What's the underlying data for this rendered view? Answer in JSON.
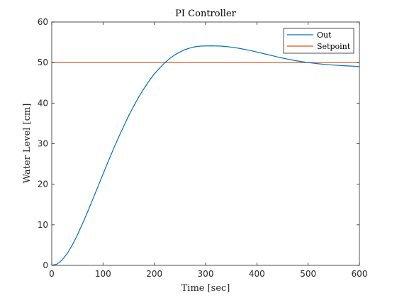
{
  "chart_data": {
    "type": "line",
    "title": "PI Controller",
    "xlabel": "Time [sec]",
    "ylabel": "Water Level [cm]",
    "xlim": [
      0,
      600
    ],
    "ylim": [
      0,
      60
    ],
    "xticks": [
      0,
      100,
      200,
      300,
      400,
      500,
      600
    ],
    "yticks": [
      0,
      10,
      20,
      30,
      40,
      50,
      60
    ],
    "xtick_labels": [
      "0",
      "100",
      "200",
      "300",
      "400",
      "500",
      "600"
    ],
    "ytick_labels": [
      "0",
      "10",
      "20",
      "30",
      "40",
      "50",
      "60"
    ],
    "grid": false,
    "legend_position": "top-right",
    "series": [
      {
        "name": "Out",
        "color": "#0072BD",
        "x": [
          0,
          10,
          20,
          30,
          40,
          50,
          60,
          70,
          80,
          90,
          100,
          110,
          120,
          130,
          140,
          150,
          160,
          170,
          180,
          190,
          200,
          210,
          220,
          230,
          240,
          250,
          260,
          270,
          280,
          290,
          300,
          310,
          320,
          330,
          340,
          350,
          360,
          370,
          380,
          390,
          400,
          410,
          420,
          430,
          440,
          450,
          460,
          470,
          480,
          490,
          500,
          510,
          520,
          530,
          540,
          550,
          560,
          570,
          580,
          590,
          600
        ],
        "y": [
          0,
          0.3,
          1.3,
          2.9,
          5.0,
          7.5,
          10.3,
          13.2,
          16.3,
          19.4,
          22.5,
          25.6,
          28.6,
          31.5,
          34.2,
          36.9,
          39.3,
          41.6,
          43.6,
          45.5,
          47.2,
          48.6,
          49.9,
          51.0,
          51.9,
          52.6,
          53.2,
          53.6,
          53.9,
          54.05,
          54.1,
          54.12,
          54.1,
          54.05,
          53.95,
          53.8,
          53.62,
          53.4,
          53.15,
          52.9,
          52.6,
          52.3,
          52.0,
          51.7,
          51.4,
          51.1,
          50.85,
          50.6,
          50.38,
          50.18,
          50.0,
          49.84,
          49.7,
          49.58,
          49.47,
          49.38,
          49.3,
          49.22,
          49.15,
          49.09,
          49.0
        ]
      },
      {
        "name": "Setpoint",
        "color": "#D95319",
        "x": [
          0,
          600
        ],
        "y": [
          50,
          50
        ]
      }
    ]
  }
}
